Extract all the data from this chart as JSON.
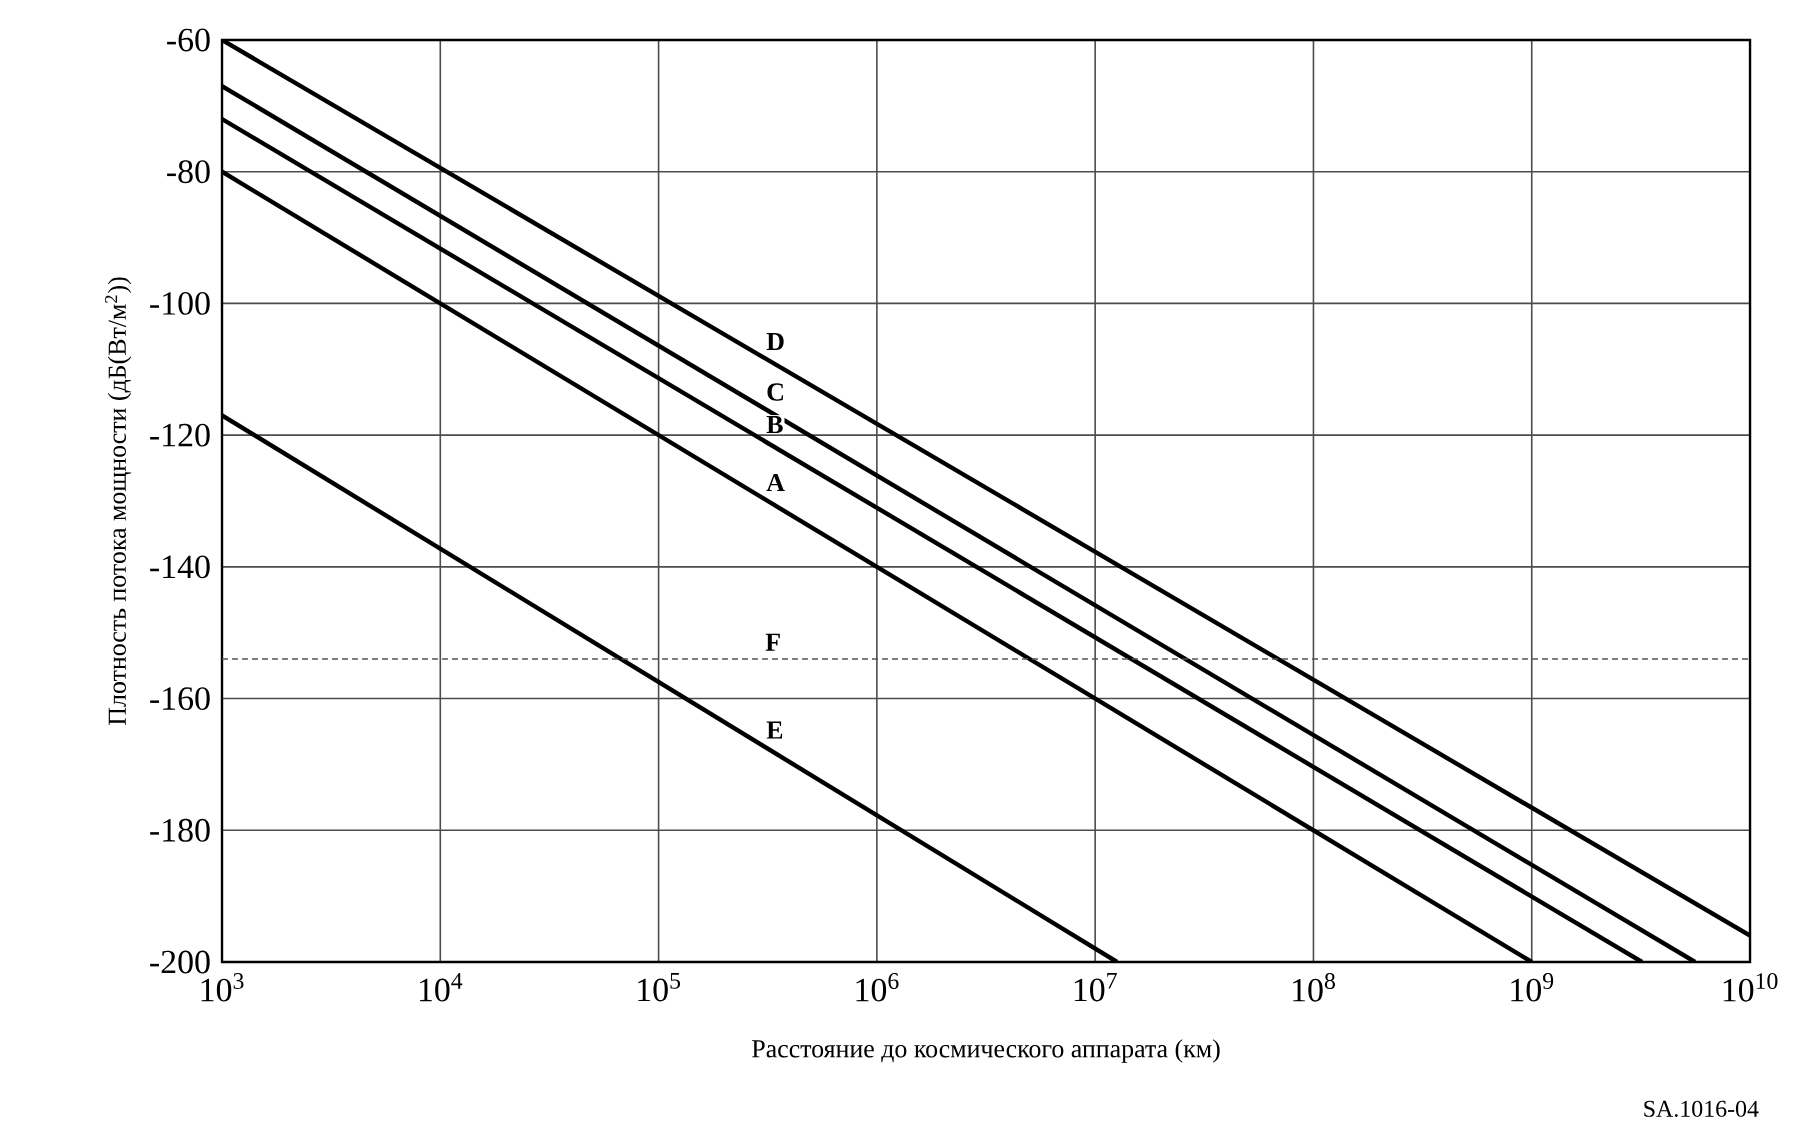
{
  "chart_data": {
    "type": "line",
    "xlabel": "Расстояние до космического аппарата (км)",
    "ylabel": "Плотность потока мощности (дБ(Вт/м$^{2}$))",
    "log": "x",
    "grid": true,
    "line_style": "solid",
    "xlim": [
      1000,
      10000000000
    ],
    "ylim": [
      -200,
      -60
    ],
    "xticks": [
      {
        "value": 1000,
        "label": "10$^{3}$"
      },
      {
        "value": 10000,
        "label": "10$^{4}$"
      },
      {
        "value": 100000,
        "label": "10$^{5}$"
      },
      {
        "value": 1000000,
        "label": "10$^{6}$"
      },
      {
        "value": 10000000,
        "label": "10$^{7}$"
      },
      {
        "value": 100000000,
        "label": "10$^{8}$"
      },
      {
        "value": 1000000000,
        "label": "10$^{9}$"
      },
      {
        "value": 10000000000,
        "label": "10$^{10}$"
      }
    ],
    "yticks": [
      -60,
      -80,
      -100,
      -120,
      -140,
      -160,
      -180,
      -200
    ],
    "series": [
      {
        "name": "D",
        "color": "#000000",
        "x": [
          1000,
          10000000000
        ],
        "values": [
          -60,
          -196
        ]
      },
      {
        "name": "C",
        "color": "#000000",
        "x": [
          1000,
          5600000000
        ],
        "values": [
          -67,
          -200
        ]
      },
      {
        "name": "B",
        "color": "#000000",
        "x": [
          1000,
          3200000000
        ],
        "values": [
          -72,
          -200
        ]
      },
      {
        "name": "A",
        "color": "#000000",
        "x": [
          1000,
          1000000000
        ],
        "values": [
          -80,
          -200
        ]
      },
      {
        "name": "E",
        "color": "#000000",
        "x": [
          1000,
          12600000
        ],
        "values": [
          -117,
          -200
        ]
      }
    ],
    "ref_lines": [
      {
        "axis": "y",
        "value": -154,
        "label": "F",
        "color": "#555555",
        "line_style": "dashed"
      }
    ],
    "annotations": [
      "SA.1016-04"
    ]
  }
}
